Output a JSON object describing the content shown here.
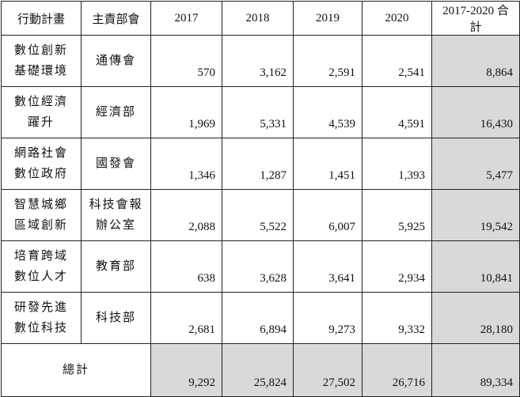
{
  "table": {
    "header": [
      "行動計畫",
      "主責部會",
      "2017",
      "2018",
      "2019",
      "2020",
      "2017-2020 合計"
    ],
    "rows": [
      {
        "plan": [
          "數位創新",
          "基礎環境"
        ],
        "dept": [
          "通傳會"
        ],
        "values": [
          "570",
          "3,162",
          "2,591",
          "2,541"
        ],
        "total": "8,864"
      },
      {
        "plan": [
          "數位經濟",
          "躍升"
        ],
        "dept": [
          "經濟部"
        ],
        "values": [
          "1,969",
          "5,331",
          "4,539",
          "4,591"
        ],
        "total": "16,430"
      },
      {
        "plan": [
          "網路社會",
          "數位政府"
        ],
        "dept": [
          "國發會"
        ],
        "values": [
          "1,346",
          "1,287",
          "1,451",
          "1,393"
        ],
        "total": "5,477"
      },
      {
        "plan": [
          "智慧城鄉",
          "區域創新"
        ],
        "dept": [
          "科技會報",
          "辦公室"
        ],
        "values": [
          "2,088",
          "5,522",
          "6,007",
          "5,925"
        ],
        "total": "19,542"
      },
      {
        "plan": [
          "培育跨域",
          "數位人才"
        ],
        "dept": [
          "教育部"
        ],
        "values": [
          "638",
          "3,628",
          "3,641",
          "2,934"
        ],
        "total": "10,841"
      },
      {
        "plan": [
          "研發先進",
          "數位科技"
        ],
        "dept": [
          "科技部"
        ],
        "values": [
          "2,681",
          "6,894",
          "9,273",
          "9,332"
        ],
        "total": "28,180"
      }
    ],
    "footer": {
      "label": "總計",
      "values": [
        "9,292",
        "25,824",
        "27,502",
        "26,716"
      ],
      "total": "89,334"
    }
  }
}
